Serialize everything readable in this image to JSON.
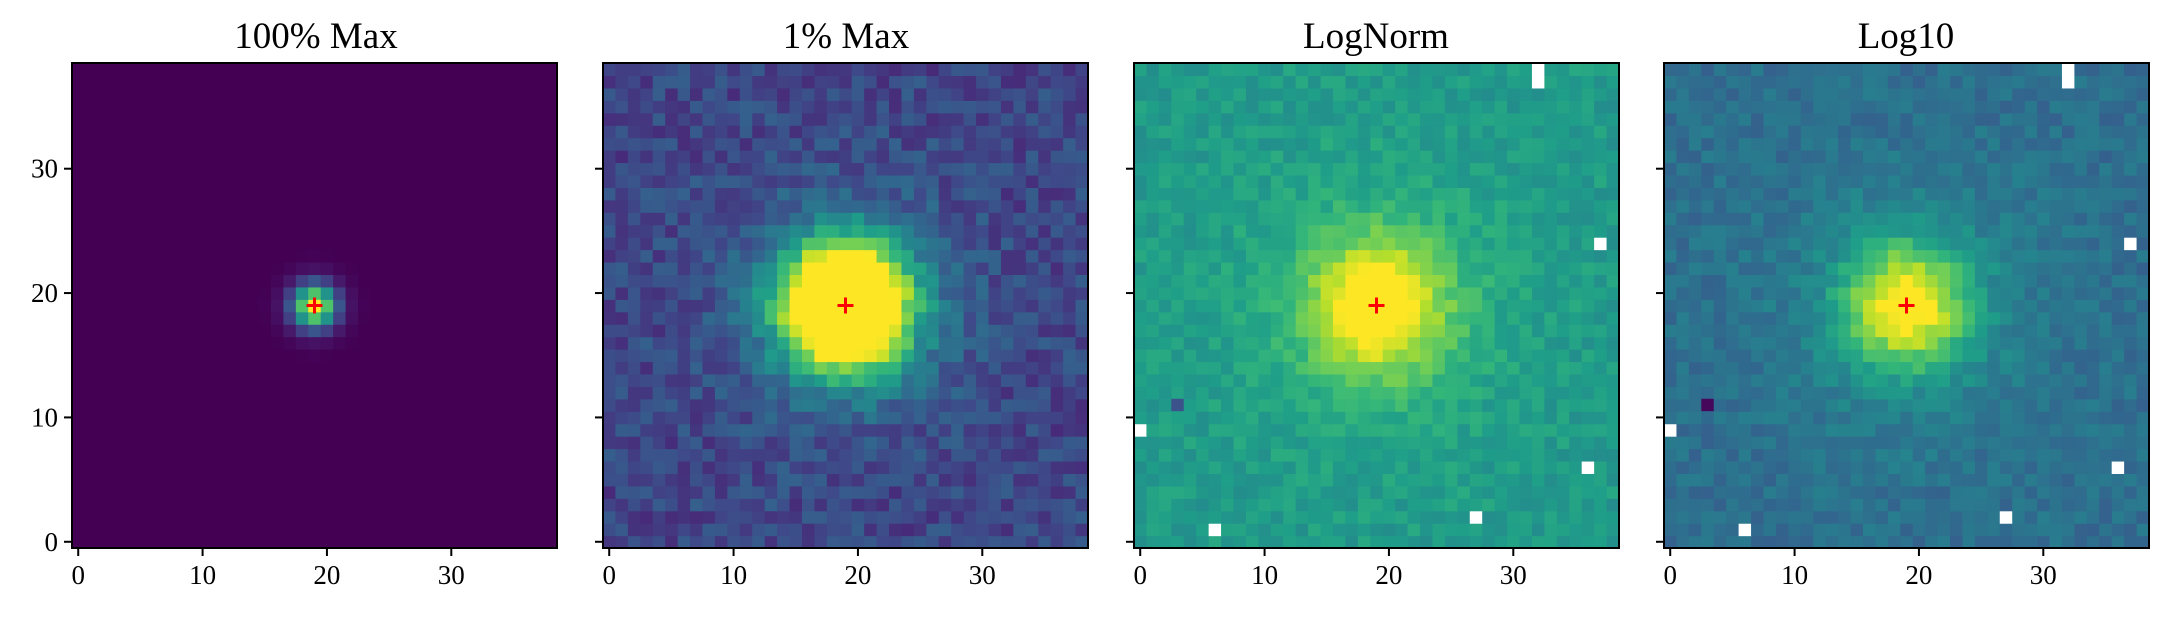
{
  "chart_data": [
    {
      "type": "heatmap",
      "title": "100% Max",
      "scale": "linear",
      "vmin_fraction_of_max": 0.0,
      "vmax_fraction_of_max": 1.0,
      "colormap": "viridis",
      "grid_size": [
        39,
        39
      ],
      "xlim": [
        -0.5,
        38.5
      ],
      "ylim": [
        -0.5,
        38.5
      ],
      "xticks": [
        "0",
        "10",
        "20",
        "30"
      ],
      "yticks": [
        "0",
        "10",
        "20",
        "30"
      ],
      "source_peak": {
        "x": 19,
        "y": 19
      },
      "marker": {
        "symbol": "+",
        "color": "#ff0000",
        "x": 19,
        "y": 19
      },
      "masked_pixels": []
    },
    {
      "type": "heatmap",
      "title": "1% Max",
      "scale": "linear",
      "vmin_fraction_of_max": 0.0,
      "vmax_fraction_of_max": 0.01,
      "colormap": "viridis",
      "grid_size": [
        39,
        39
      ],
      "xlim": [
        -0.5,
        38.5
      ],
      "ylim": [
        -0.5,
        38.5
      ],
      "xticks": [
        "0",
        "10",
        "20",
        "30"
      ],
      "yticks": [],
      "source_peak": {
        "x": 19,
        "y": 19
      },
      "marker": {
        "symbol": "+",
        "color": "#ff0000",
        "x": 19,
        "y": 19
      },
      "masked_pixels": []
    },
    {
      "type": "heatmap",
      "title": "LogNorm",
      "scale": "log",
      "colormap": "viridis",
      "grid_size": [
        39,
        39
      ],
      "xlim": [
        -0.5,
        38.5
      ],
      "ylim": [
        -0.5,
        38.5
      ],
      "xticks": [
        "0",
        "10",
        "20",
        "30"
      ],
      "yticks": [],
      "source_peak": {
        "x": 19,
        "y": 19
      },
      "marker": {
        "symbol": "+",
        "color": "#ff0000",
        "x": 19,
        "y": 19
      },
      "masked_pixels": [
        [
          32,
          37
        ],
        [
          32,
          38
        ],
        [
          37,
          24
        ],
        [
          0,
          9
        ],
        [
          36,
          6
        ],
        [
          27,
          2
        ],
        [
          6,
          1
        ]
      ]
    },
    {
      "type": "heatmap",
      "title": "Log10",
      "scale": "log10",
      "colormap": "viridis",
      "grid_size": [
        39,
        39
      ],
      "xlim": [
        -0.5,
        38.5
      ],
      "ylim": [
        -0.5,
        38.5
      ],
      "xticks": [
        "0",
        "10",
        "20",
        "30"
      ],
      "yticks": [],
      "source_peak": {
        "x": 19,
        "y": 19
      },
      "marker": {
        "symbol": "+",
        "color": "#ff0000",
        "x": 19,
        "y": 19
      },
      "masked_pixels": [
        [
          32,
          37
        ],
        [
          32,
          38
        ],
        [
          37,
          24
        ],
        [
          0,
          9
        ],
        [
          36,
          6
        ],
        [
          27,
          2
        ],
        [
          6,
          1
        ]
      ]
    }
  ]
}
